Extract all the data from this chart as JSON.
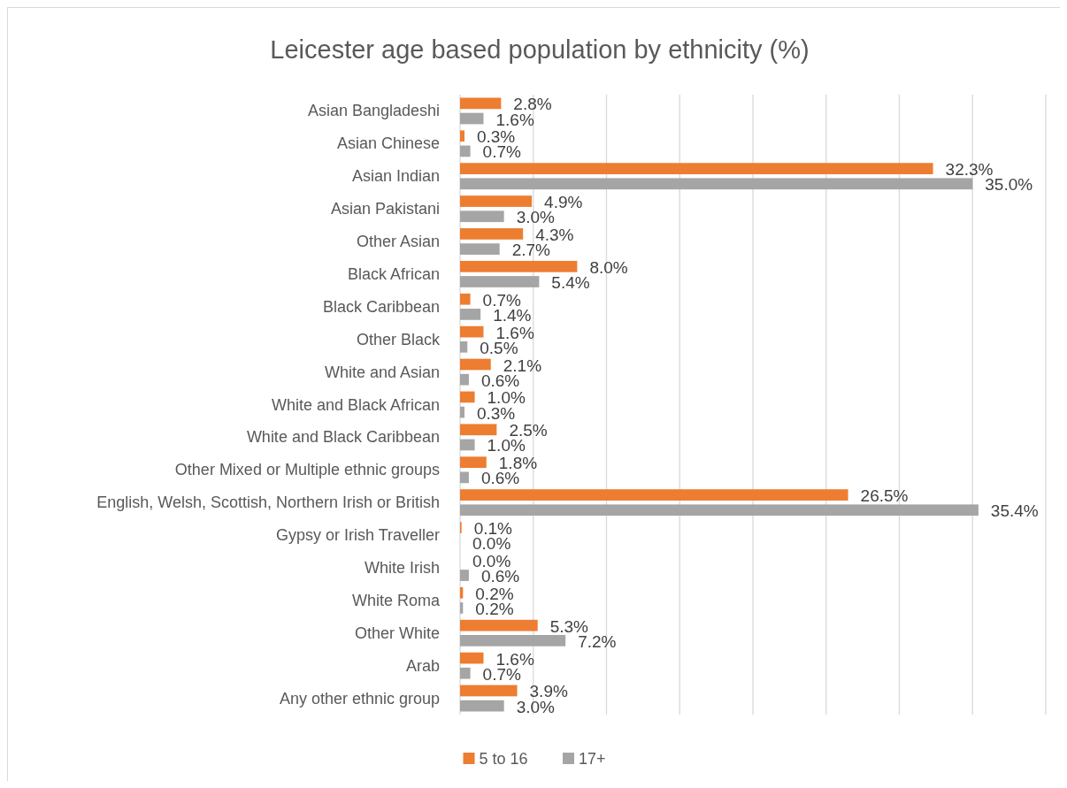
{
  "chart_data": {
    "type": "bar",
    "orientation": "horizontal",
    "title": "Leicester age based population by ethnicity (%)",
    "categories": [
      "Asian Bangladeshi",
      "Asian Chinese",
      "Asian Indian",
      "Asian Pakistani",
      "Other Asian",
      "Black African",
      "Black Caribbean",
      "Other Black",
      "White and Asian",
      "White and Black African",
      "White and Black Caribbean",
      "Other Mixed or Multiple ethnic groups",
      "English, Welsh, Scottish, Northern Irish or British",
      "Gypsy or Irish Traveller",
      "White Irish",
      "White Roma",
      "Other White",
      "Arab",
      "Any other ethnic group"
    ],
    "series": [
      {
        "name": "5 to 16",
        "color": "#ed7d31",
        "values": [
          2.8,
          0.3,
          32.3,
          4.9,
          4.3,
          8.0,
          0.7,
          1.6,
          2.1,
          1.0,
          2.5,
          1.8,
          26.5,
          0.1,
          0.0,
          0.2,
          5.3,
          1.6,
          3.9
        ],
        "value_labels": [
          "2.8%",
          "0.3%",
          "32.3%",
          "4.9%",
          "4.3%",
          "8.0%",
          "0.7%",
          "1.6%",
          "2.1%",
          "1.0%",
          "2.5%",
          "1.8%",
          "26.5%",
          "0.1%",
          "0.0%",
          "0.2%",
          "5.3%",
          "1.6%",
          "3.9%"
        ]
      },
      {
        "name": "17+",
        "color": "#a5a5a5",
        "values": [
          1.6,
          0.7,
          35.0,
          3.0,
          2.7,
          5.4,
          1.4,
          0.5,
          0.6,
          0.3,
          1.0,
          0.6,
          35.4,
          0.0,
          0.6,
          0.2,
          7.2,
          0.7,
          3.0
        ],
        "value_labels": [
          "1.6%",
          "0.7%",
          "35.0%",
          "3.0%",
          "2.7%",
          "5.4%",
          "1.4%",
          "0.5%",
          "0.6%",
          "0.3%",
          "1.0%",
          "0.6%",
          "35.4%",
          "0.0%",
          "0.6%",
          "0.2%",
          "7.2%",
          "0.7%",
          "3.0%"
        ]
      }
    ],
    "xlim": [
      0,
      40
    ],
    "xticks": [
      {
        "value": 0,
        "label": null
      },
      {
        "value": 5,
        "label": null
      },
      {
        "value": 10,
        "label": null
      },
      {
        "value": 15,
        "label": null
      },
      {
        "value": 20,
        "label": null
      },
      {
        "value": 25,
        "label": null
      },
      {
        "value": 30,
        "label": null
      },
      {
        "value": 35,
        "label": null
      },
      {
        "value": 40,
        "label": null
      }
    ],
    "grid": "x",
    "legend": "bottom",
    "tick_labels": "y"
  }
}
